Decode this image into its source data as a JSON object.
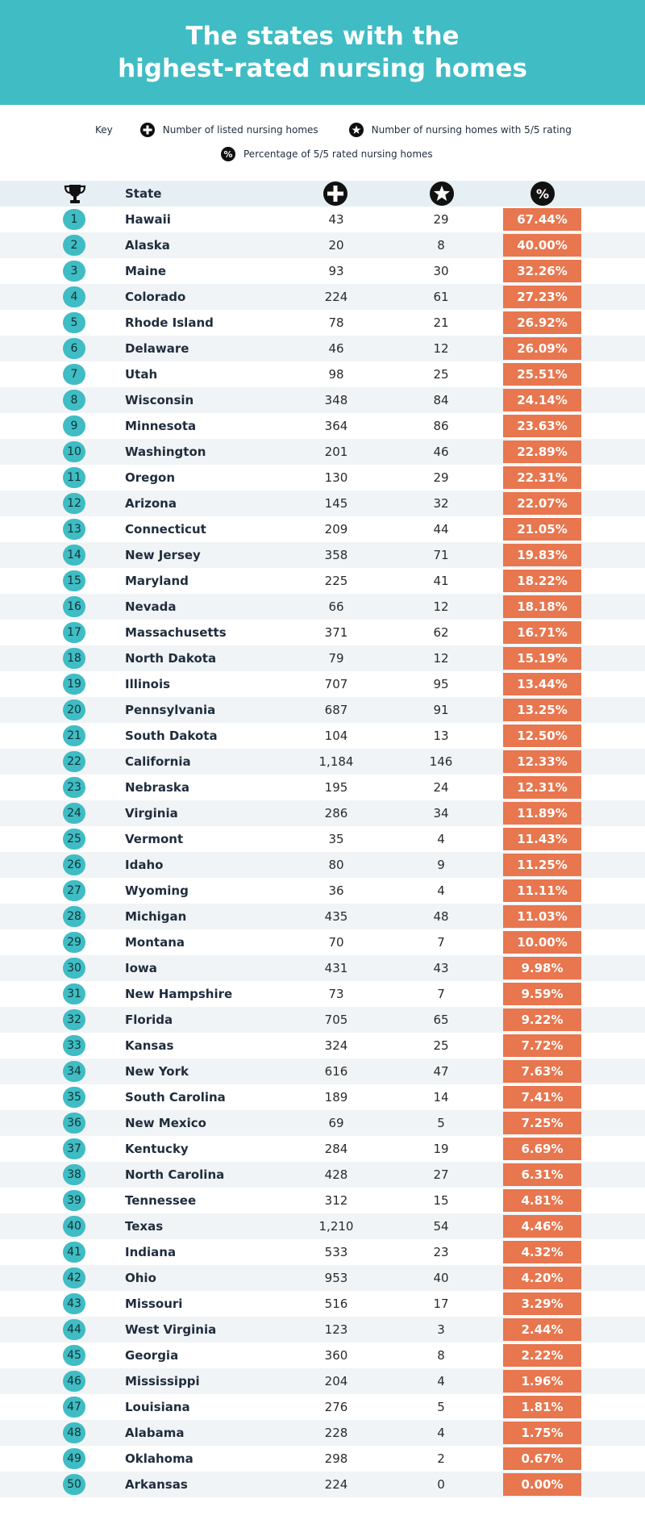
{
  "title_line1": "The states with the",
  "title_line2": "highest-rated nursing homes",
  "key": {
    "label": "Key",
    "listed": "Number of listed nursing homes",
    "five_star": "Number of nursing homes with 5/5 rating",
    "percentage": "Percentage of 5/5 rated nursing homes",
    "percent_symbol": "%"
  },
  "table_header": {
    "state": "State",
    "percent_symbol": "%"
  },
  "colors": {
    "header_bg": "#3fbcc4",
    "rank_bg": "#3fbcc4",
    "percent_bg": "#e8764e",
    "icon": "#0f0f0f"
  },
  "icons": {
    "trophy": "trophy-icon",
    "listed": "plus-circle-icon",
    "five_star": "star-circle-icon",
    "percentage": "percent-circle-icon"
  },
  "chart_data": {
    "type": "table",
    "columns": [
      "Rank",
      "State",
      "Number of listed nursing homes",
      "Number of nursing homes with 5/5 rating",
      "Percentage of 5/5 rated nursing homes"
    ],
    "rows": [
      {
        "rank": "1",
        "state": "Hawaii",
        "listed": "43",
        "five_star": "29",
        "percent": "67.44%"
      },
      {
        "rank": "2",
        "state": "Alaska",
        "listed": "20",
        "five_star": "8",
        "percent": "40.00%"
      },
      {
        "rank": "3",
        "state": "Maine",
        "listed": "93",
        "five_star": "30",
        "percent": "32.26%"
      },
      {
        "rank": "4",
        "state": "Colorado",
        "listed": "224",
        "five_star": "61",
        "percent": "27.23%"
      },
      {
        "rank": "5",
        "state": "Rhode Island",
        "listed": "78",
        "five_star": "21",
        "percent": "26.92%"
      },
      {
        "rank": "6",
        "state": "Delaware",
        "listed": "46",
        "five_star": "12",
        "percent": "26.09%"
      },
      {
        "rank": "7",
        "state": "Utah",
        "listed": "98",
        "five_star": "25",
        "percent": "25.51%"
      },
      {
        "rank": "8",
        "state": "Wisconsin",
        "listed": "348",
        "five_star": "84",
        "percent": "24.14%"
      },
      {
        "rank": "9",
        "state": "Minnesota",
        "listed": "364",
        "five_star": "86",
        "percent": "23.63%"
      },
      {
        "rank": "10",
        "state": "Washington",
        "listed": "201",
        "five_star": "46",
        "percent": "22.89%"
      },
      {
        "rank": "11",
        "state": "Oregon",
        "listed": "130",
        "five_star": "29",
        "percent": "22.31%"
      },
      {
        "rank": "12",
        "state": "Arizona",
        "listed": "145",
        "five_star": "32",
        "percent": "22.07%"
      },
      {
        "rank": "13",
        "state": "Connecticut",
        "listed": "209",
        "five_star": "44",
        "percent": "21.05%"
      },
      {
        "rank": "14",
        "state": "New Jersey",
        "listed": "358",
        "five_star": "71",
        "percent": "19.83%"
      },
      {
        "rank": "15",
        "state": "Maryland",
        "listed": "225",
        "five_star": "41",
        "percent": "18.22%"
      },
      {
        "rank": "16",
        "state": "Nevada",
        "listed": "66",
        "five_star": "12",
        "percent": "18.18%"
      },
      {
        "rank": "17",
        "state": "Massachusetts",
        "listed": "371",
        "five_star": "62",
        "percent": "16.71%"
      },
      {
        "rank": "18",
        "state": "North Dakota",
        "listed": "79",
        "five_star": "12",
        "percent": "15.19%"
      },
      {
        "rank": "19",
        "state": "Illinois",
        "listed": "707",
        "five_star": "95",
        "percent": "13.44%"
      },
      {
        "rank": "20",
        "state": "Pennsylvania",
        "listed": "687",
        "five_star": "91",
        "percent": "13.25%"
      },
      {
        "rank": "21",
        "state": "South Dakota",
        "listed": "104",
        "five_star": "13",
        "percent": "12.50%"
      },
      {
        "rank": "22",
        "state": "California",
        "listed": "1,184",
        "five_star": "146",
        "percent": "12.33%"
      },
      {
        "rank": "23",
        "state": "Nebraska",
        "listed": "195",
        "five_star": "24",
        "percent": "12.31%"
      },
      {
        "rank": "24",
        "state": "Virginia",
        "listed": "286",
        "five_star": "34",
        "percent": "11.89%"
      },
      {
        "rank": "25",
        "state": "Vermont",
        "listed": "35",
        "five_star": "4",
        "percent": "11.43%"
      },
      {
        "rank": "26",
        "state": "Idaho",
        "listed": "80",
        "five_star": "9",
        "percent": "11.25%"
      },
      {
        "rank": "27",
        "state": "Wyoming",
        "listed": "36",
        "five_star": "4",
        "percent": "11.11%"
      },
      {
        "rank": "28",
        "state": "Michigan",
        "listed": "435",
        "five_star": "48",
        "percent": "11.03%"
      },
      {
        "rank": "29",
        "state": "Montana",
        "listed": "70",
        "five_star": "7",
        "percent": "10.00%"
      },
      {
        "rank": "30",
        "state": "Iowa",
        "listed": "431",
        "five_star": "43",
        "percent": "9.98%"
      },
      {
        "rank": "31",
        "state": "New Hampshire",
        "listed": "73",
        "five_star": "7",
        "percent": "9.59%"
      },
      {
        "rank": "32",
        "state": "Florida",
        "listed": "705",
        "five_star": "65",
        "percent": "9.22%"
      },
      {
        "rank": "33",
        "state": "Kansas",
        "listed": "324",
        "five_star": "25",
        "percent": "7.72%"
      },
      {
        "rank": "34",
        "state": "New York",
        "listed": "616",
        "five_star": "47",
        "percent": "7.63%"
      },
      {
        "rank": "35",
        "state": "South Carolina",
        "listed": "189",
        "five_star": "14",
        "percent": "7.41%"
      },
      {
        "rank": "36",
        "state": "New Mexico",
        "listed": "69",
        "five_star": "5",
        "percent": "7.25%"
      },
      {
        "rank": "37",
        "state": "Kentucky",
        "listed": "284",
        "five_star": "19",
        "percent": "6.69%"
      },
      {
        "rank": "38",
        "state": "North Carolina",
        "listed": "428",
        "five_star": "27",
        "percent": "6.31%"
      },
      {
        "rank": "39",
        "state": "Tennessee",
        "listed": "312",
        "five_star": "15",
        "percent": "4.81%"
      },
      {
        "rank": "40",
        "state": "Texas",
        "listed": "1,210",
        "five_star": "54",
        "percent": "4.46%"
      },
      {
        "rank": "41",
        "state": "Indiana",
        "listed": "533",
        "five_star": "23",
        "percent": "4.32%"
      },
      {
        "rank": "42",
        "state": "Ohio",
        "listed": "953",
        "five_star": "40",
        "percent": "4.20%"
      },
      {
        "rank": "43",
        "state": "Missouri",
        "listed": "516",
        "five_star": "17",
        "percent": "3.29%"
      },
      {
        "rank": "44",
        "state": "West Virginia",
        "listed": "123",
        "five_star": "3",
        "percent": "2.44%"
      },
      {
        "rank": "45",
        "state": "Georgia",
        "listed": "360",
        "five_star": "8",
        "percent": "2.22%"
      },
      {
        "rank": "46",
        "state": "Mississippi",
        "listed": "204",
        "five_star": "4",
        "percent": "1.96%"
      },
      {
        "rank": "47",
        "state": "Louisiana",
        "listed": "276",
        "five_star": "5",
        "percent": "1.81%"
      },
      {
        "rank": "48",
        "state": "Alabama",
        "listed": "228",
        "five_star": "4",
        "percent": "1.75%"
      },
      {
        "rank": "49",
        "state": "Oklahoma",
        "listed": "298",
        "five_star": "2",
        "percent": "0.67%"
      },
      {
        "rank": "50",
        "state": "Arkansas",
        "listed": "224",
        "five_star": "0",
        "percent": "0.00%"
      }
    ]
  }
}
